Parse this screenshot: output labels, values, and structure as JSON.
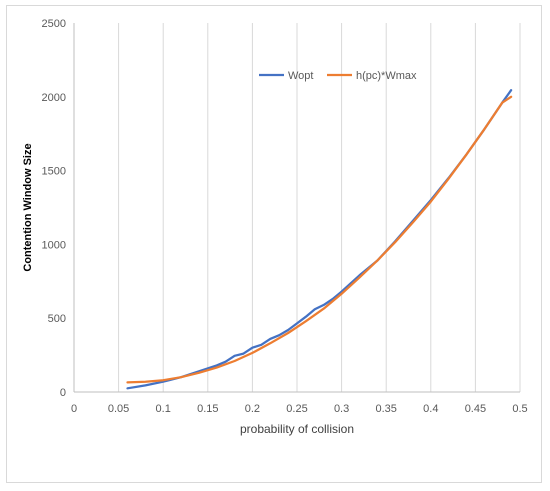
{
  "chart_data": {
    "type": "line",
    "xlabel": "probability of collision",
    "ylabel": "Contention Window Size",
    "xlim": [
      0,
      0.5
    ],
    "ylim": [
      0,
      2500
    ],
    "x_ticks": [
      "0",
      "0.05",
      "0.1",
      "0.15",
      "0.2",
      "0.25",
      "0.3",
      "0.35",
      "0.4",
      "0.45",
      "0.5"
    ],
    "y_ticks": [
      "0",
      "500",
      "1000",
      "1500",
      "2000",
      "2500"
    ],
    "grid": "vertical",
    "legend_position": "top-right",
    "series": [
      {
        "name": "Wopt",
        "color": "#4472C4",
        "x": [
          0.06,
          0.08,
          0.1,
          0.12,
          0.14,
          0.16,
          0.17,
          0.18,
          0.19,
          0.2,
          0.21,
          0.22,
          0.23,
          0.24,
          0.25,
          0.26,
          0.27,
          0.28,
          0.29,
          0.3,
          0.32,
          0.34,
          0.36,
          0.38,
          0.4,
          0.42,
          0.44,
          0.46,
          0.48,
          0.49
        ],
        "values": [
          25,
          45,
          70,
          100,
          140,
          180,
          205,
          245,
          260,
          300,
          320,
          360,
          385,
          420,
          465,
          510,
          560,
          590,
          630,
          680,
          790,
          890,
          1020,
          1160,
          1300,
          1450,
          1610,
          1780,
          1960,
          2045
        ]
      },
      {
        "name": "h(pc)*Wmax",
        "color": "#ED7D31",
        "x": [
          0.06,
          0.08,
          0.1,
          0.12,
          0.14,
          0.16,
          0.18,
          0.2,
          0.22,
          0.24,
          0.26,
          0.28,
          0.3,
          0.32,
          0.34,
          0.36,
          0.38,
          0.4,
          0.42,
          0.44,
          0.46,
          0.48,
          0.49
        ],
        "values": [
          65,
          70,
          80,
          100,
          130,
          165,
          210,
          265,
          330,
          400,
          480,
          565,
          665,
          775,
          890,
          1015,
          1150,
          1290,
          1445,
          1610,
          1780,
          1960,
          2000
        ]
      }
    ]
  }
}
